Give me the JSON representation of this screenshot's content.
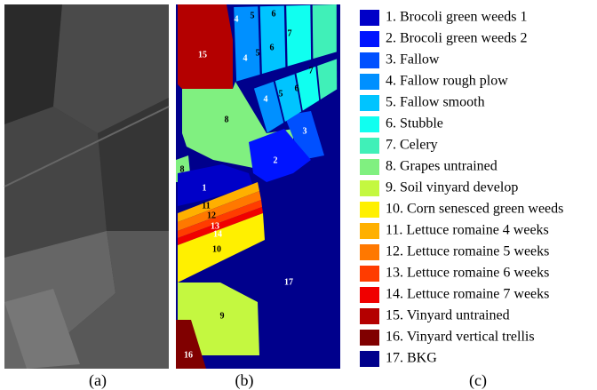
{
  "captions": [
    "(a)",
    "(b)",
    "(c)"
  ],
  "map_labels": [
    "15",
    "4",
    "5",
    "6",
    "4",
    "5",
    "6",
    "7",
    "4",
    "5",
    "6",
    "7",
    "3",
    "8",
    "2",
    "8",
    "1",
    "11",
    "12",
    "13",
    "14",
    "10",
    "17",
    "9",
    "16"
  ],
  "legend": [
    {
      "label": "1. Brocoli green weeds 1",
      "color": "#0000c8"
    },
    {
      "label": "2. Brocoli green weeds 2",
      "color": "#0014ff"
    },
    {
      "label": "3. Fallow",
      "color": "#0050ff"
    },
    {
      "label": "4. Fallow rough plow",
      "color": "#0090ff"
    },
    {
      "label": "5. Fallow smooth",
      "color": "#00c4ff"
    },
    {
      "label": "6. Stubble",
      "color": "#10fff0"
    },
    {
      "label": "7. Celery",
      "color": "#40f0b8"
    },
    {
      "label": "8. Grapes untrained",
      "color": "#80f080"
    },
    {
      "label": "9. Soil vinyard develop",
      "color": "#c4f840"
    },
    {
      "label": "10. Corn senesced green weeds",
      "color": "#fff000"
    },
    {
      "label": "11. Lettuce romaine 4 weeks",
      "color": "#ffb000"
    },
    {
      "label": "12. Lettuce romaine 5 weeks",
      "color": "#ff7800"
    },
    {
      "label": "13. Lettuce romaine 6 weeks",
      "color": "#ff3c00"
    },
    {
      "label": "14. Lettuce romaine 7 weeks",
      "color": "#f00000"
    },
    {
      "label": "15. Vinyard untrained",
      "color": "#b40000"
    },
    {
      "label": "16. Vinyard vertical trellis",
      "color": "#800000"
    },
    {
      "label": "17. BKG",
      "color": "#00008c"
    }
  ]
}
